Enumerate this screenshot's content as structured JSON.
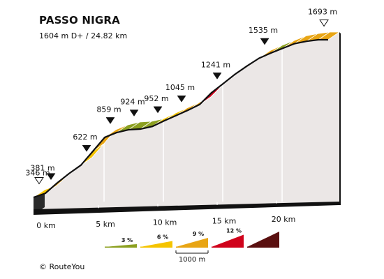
{
  "chart_data": {
    "type": "area",
    "title": "PASSO NIGRA",
    "subtitle": "1604 m D+ / 24.82 km",
    "credit": "© RouteYou",
    "x_unit": "km",
    "y_unit": "m",
    "x": [
      0,
      1,
      2,
      3,
      4,
      5,
      6,
      7,
      8,
      9,
      10,
      11,
      12,
      13,
      14,
      15,
      16,
      17,
      18,
      19,
      20,
      21,
      22,
      23,
      24,
      24.82
    ],
    "y": [
      346,
      381,
      470,
      550,
      622,
      740,
      859,
      900,
      924,
      930,
      952,
      1000,
      1045,
      1090,
      1140,
      1241,
      1320,
      1400,
      1470,
      1535,
      1580,
      1620,
      1660,
      1680,
      1693,
      1693
    ],
    "segment_colors": [
      "#f5c400",
      "#e8a514",
      "#e8a514",
      "#d0021b",
      "#f5c400",
      "#e8a514",
      "#e8a514",
      "#8ca020",
      "#8ca020",
      "#8ca020",
      "#f5c400",
      "#f5c400",
      "#e8a514",
      "#e8a514",
      "#d0021b",
      "#d0021b",
      "#e8a514",
      "#d0021b",
      "#d0021b",
      "#e8a514",
      "#8ca020",
      "#e8a514",
      "#e8a514",
      "#e8a514",
      "#e8a514"
    ],
    "km_ticks": [
      {
        "km": 0,
        "label": "0 km"
      },
      {
        "km": 5,
        "label": "5 km"
      },
      {
        "km": 10,
        "label": "10 km"
      },
      {
        "km": 15,
        "label": "15 km"
      },
      {
        "km": 20,
        "label": "20 km"
      }
    ],
    "elevation_markers": [
      {
        "km": 0,
        "label": "346 m",
        "marker": "open"
      },
      {
        "km": 1,
        "label": "381 m",
        "marker": "filled"
      },
      {
        "km": 4,
        "label": "622 m",
        "marker": "filled"
      },
      {
        "km": 6,
        "label": "859 m",
        "marker": "filled"
      },
      {
        "km": 8,
        "label": "924 m",
        "marker": "filled"
      },
      {
        "km": 10,
        "label": "952 m",
        "marker": "filled"
      },
      {
        "km": 12,
        "label": "1045 m",
        "marker": "filled"
      },
      {
        "km": 15,
        "label": "1241 m",
        "marker": "filled"
      },
      {
        "km": 19,
        "label": "1535 m",
        "marker": "filled"
      },
      {
        "km": 24,
        "label": "1693 m",
        "marker": "open"
      }
    ],
    "legend": [
      {
        "label": "3 %",
        "color": "#8ca020"
      },
      {
        "label": "6 %",
        "color": "#f5c400"
      },
      {
        "label": "9 %",
        "color": "#e8a514"
      },
      {
        "label": "12 %",
        "color": "#d0021b"
      },
      {
        "label": "",
        "color": "#5a1010"
      }
    ],
    "scale_label": "1000 m"
  }
}
